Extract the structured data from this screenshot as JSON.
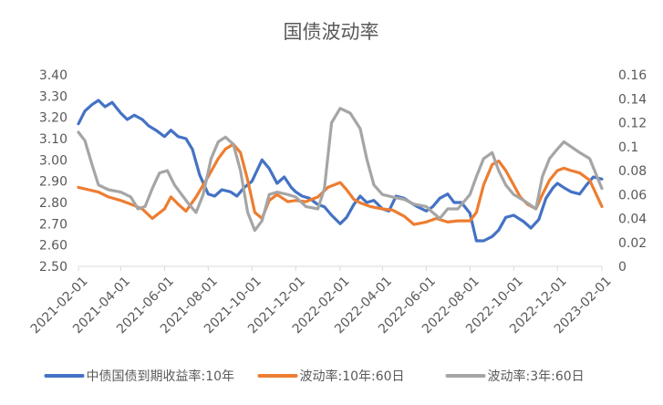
{
  "chart_data": {
    "type": "line",
    "title": "国债波动率",
    "x_start": "2021-02-01",
    "x_end": "2023-02-01",
    "x_ticks": [
      "2021-02-01",
      "2021-04-01",
      "2021-06-01",
      "2021-08-01",
      "2021-10-01",
      "2021-12-01",
      "2022-02-01",
      "2022-04-01",
      "2022-06-01",
      "2022-08-01",
      "2022-10-01",
      "2022-12-01",
      "2023-02-01"
    ],
    "y_left": {
      "min": 2.5,
      "max": 3.4,
      "ticks": [
        "2.50",
        "2.60",
        "2.70",
        "2.80",
        "2.90",
        "3.00",
        "3.10",
        "3.20",
        "3.30",
        "3.40"
      ]
    },
    "y_right": {
      "min": 0,
      "max": 0.16,
      "ticks": [
        "0",
        "0.02",
        "0.04",
        "0.06",
        "0.08",
        "0.1",
        "0.12",
        "0.14",
        "0.16"
      ]
    },
    "grid": false,
    "legend_position": "bottom",
    "series": [
      {
        "name": "中债国债到期收益率:10年",
        "axis": "left",
        "color": "#4472C4",
        "points": [
          [
            "2021-02-01",
            3.17
          ],
          [
            "2021-02-10",
            3.23
          ],
          [
            "2021-02-20",
            3.26
          ],
          [
            "2021-03-01",
            3.28
          ],
          [
            "2021-03-10",
            3.25
          ],
          [
            "2021-03-20",
            3.27
          ],
          [
            "2021-04-01",
            3.22
          ],
          [
            "2021-04-10",
            3.19
          ],
          [
            "2021-04-20",
            3.21
          ],
          [
            "2021-05-01",
            3.19
          ],
          [
            "2021-05-10",
            3.16
          ],
          [
            "2021-05-20",
            3.14
          ],
          [
            "2021-06-01",
            3.11
          ],
          [
            "2021-06-10",
            3.14
          ],
          [
            "2021-06-20",
            3.11
          ],
          [
            "2021-07-01",
            3.1
          ],
          [
            "2021-07-10",
            3.05
          ],
          [
            "2021-07-20",
            2.93
          ],
          [
            "2021-08-01",
            2.84
          ],
          [
            "2021-08-10",
            2.83
          ],
          [
            "2021-08-20",
            2.86
          ],
          [
            "2021-09-01",
            2.85
          ],
          [
            "2021-09-10",
            2.83
          ],
          [
            "2021-09-20",
            2.87
          ],
          [
            "2021-10-01",
            2.9
          ],
          [
            "2021-10-15",
            3.0
          ],
          [
            "2021-10-25",
            2.96
          ],
          [
            "2021-11-05",
            2.89
          ],
          [
            "2021-11-15",
            2.92
          ],
          [
            "2021-11-25",
            2.87
          ],
          [
            "2021-12-01",
            2.85
          ],
          [
            "2021-12-10",
            2.83
          ],
          [
            "2021-12-20",
            2.82
          ],
          [
            "2022-01-01",
            2.79
          ],
          [
            "2022-01-10",
            2.78
          ],
          [
            "2022-01-20",
            2.74
          ],
          [
            "2022-02-01",
            2.7
          ],
          [
            "2022-02-10",
            2.73
          ],
          [
            "2022-02-20",
            2.79
          ],
          [
            "2022-03-01",
            2.83
          ],
          [
            "2022-03-10",
            2.8
          ],
          [
            "2022-03-20",
            2.81
          ],
          [
            "2022-04-01",
            2.77
          ],
          [
            "2022-04-10",
            2.76
          ],
          [
            "2022-04-20",
            2.83
          ],
          [
            "2022-05-01",
            2.82
          ],
          [
            "2022-05-10",
            2.8
          ],
          [
            "2022-05-20",
            2.78
          ],
          [
            "2022-06-01",
            2.76
          ],
          [
            "2022-06-10",
            2.78
          ],
          [
            "2022-06-20",
            2.82
          ],
          [
            "2022-07-01",
            2.84
          ],
          [
            "2022-07-10",
            2.8
          ],
          [
            "2022-07-20",
            2.8
          ],
          [
            "2022-08-01",
            2.75
          ],
          [
            "2022-08-10",
            2.62
          ],
          [
            "2022-08-20",
            2.62
          ],
          [
            "2022-09-01",
            2.64
          ],
          [
            "2022-09-10",
            2.67
          ],
          [
            "2022-09-20",
            2.73
          ],
          [
            "2022-10-01",
            2.74
          ],
          [
            "2022-10-15",
            2.71
          ],
          [
            "2022-10-25",
            2.68
          ],
          [
            "2022-11-05",
            2.72
          ],
          [
            "2022-11-15",
            2.82
          ],
          [
            "2022-11-25",
            2.87
          ],
          [
            "2022-12-01",
            2.89
          ],
          [
            "2022-12-10",
            2.87
          ],
          [
            "2022-12-20",
            2.85
          ],
          [
            "2023-01-01",
            2.84
          ],
          [
            "2023-01-10",
            2.88
          ],
          [
            "2023-01-20",
            2.92
          ],
          [
            "2023-02-01",
            2.91
          ]
        ]
      },
      {
        "name": "波动率:10年:60日",
        "axis": "right",
        "color": "#ED7D31",
        "points": [
          [
            "2021-02-01",
            0.066
          ],
          [
            "2021-02-15",
            0.064
          ],
          [
            "2021-03-01",
            0.062
          ],
          [
            "2021-03-15",
            0.058
          ],
          [
            "2021-04-01",
            0.055
          ],
          [
            "2021-04-15",
            0.052
          ],
          [
            "2021-05-01",
            0.048
          ],
          [
            "2021-05-15",
            0.04
          ],
          [
            "2021-06-01",
            0.048
          ],
          [
            "2021-06-10",
            0.058
          ],
          [
            "2021-06-20",
            0.052
          ],
          [
            "2021-07-01",
            0.046
          ],
          [
            "2021-07-15",
            0.058
          ],
          [
            "2021-08-01",
            0.075
          ],
          [
            "2021-08-15",
            0.09
          ],
          [
            "2021-08-25",
            0.098
          ],
          [
            "2021-09-05",
            0.102
          ],
          [
            "2021-09-15",
            0.095
          ],
          [
            "2021-09-25",
            0.072
          ],
          [
            "2021-10-05",
            0.045
          ],
          [
            "2021-10-15",
            0.04
          ],
          [
            "2021-10-25",
            0.055
          ],
          [
            "2021-11-05",
            0.06
          ],
          [
            "2021-11-20",
            0.054
          ],
          [
            "2021-12-01",
            0.055
          ],
          [
            "2021-12-15",
            0.054
          ],
          [
            "2022-01-01",
            0.058
          ],
          [
            "2022-01-15",
            0.066
          ],
          [
            "2022-02-01",
            0.07
          ],
          [
            "2022-02-10",
            0.064
          ],
          [
            "2022-02-20",
            0.056
          ],
          [
            "2022-03-01",
            0.053
          ],
          [
            "2022-03-15",
            0.05
          ],
          [
            "2022-04-01",
            0.048
          ],
          [
            "2022-04-15",
            0.047
          ],
          [
            "2022-05-01",
            0.042
          ],
          [
            "2022-05-15",
            0.035
          ],
          [
            "2022-06-01",
            0.037
          ],
          [
            "2022-06-15",
            0.04
          ],
          [
            "2022-07-01",
            0.037
          ],
          [
            "2022-07-15",
            0.038
          ],
          [
            "2022-08-01",
            0.038
          ],
          [
            "2022-08-10",
            0.045
          ],
          [
            "2022-08-20",
            0.068
          ],
          [
            "2022-09-01",
            0.085
          ],
          [
            "2022-09-10",
            0.088
          ],
          [
            "2022-09-20",
            0.08
          ],
          [
            "2022-10-01",
            0.068
          ],
          [
            "2022-10-10",
            0.058
          ],
          [
            "2022-10-20",
            0.052
          ],
          [
            "2022-11-01",
            0.048
          ],
          [
            "2022-11-10",
            0.06
          ],
          [
            "2022-11-20",
            0.072
          ],
          [
            "2022-12-01",
            0.08
          ],
          [
            "2022-12-10",
            0.082
          ],
          [
            "2022-12-20",
            0.08
          ],
          [
            "2023-01-01",
            0.078
          ],
          [
            "2023-01-15",
            0.072
          ],
          [
            "2023-02-01",
            0.05
          ]
        ]
      },
      {
        "name": "波动率:3年:60日",
        "axis": "right",
        "color": "#A5A5A5",
        "points": [
          [
            "2021-02-01",
            0.112
          ],
          [
            "2021-02-10",
            0.105
          ],
          [
            "2021-02-20",
            0.085
          ],
          [
            "2021-03-01",
            0.068
          ],
          [
            "2021-03-15",
            0.064
          ],
          [
            "2021-04-01",
            0.062
          ],
          [
            "2021-04-15",
            0.058
          ],
          [
            "2021-04-25",
            0.048
          ],
          [
            "2021-05-05",
            0.05
          ],
          [
            "2021-05-15",
            0.065
          ],
          [
            "2021-05-25",
            0.078
          ],
          [
            "2021-06-05",
            0.08
          ],
          [
            "2021-06-15",
            0.068
          ],
          [
            "2021-06-25",
            0.06
          ],
          [
            "2021-07-05",
            0.052
          ],
          [
            "2021-07-15",
            0.045
          ],
          [
            "2021-07-25",
            0.06
          ],
          [
            "2021-08-05",
            0.09
          ],
          [
            "2021-08-15",
            0.104
          ],
          [
            "2021-08-25",
            0.108
          ],
          [
            "2021-09-05",
            0.102
          ],
          [
            "2021-09-15",
            0.08
          ],
          [
            "2021-09-25",
            0.045
          ],
          [
            "2021-10-05",
            0.03
          ],
          [
            "2021-10-15",
            0.038
          ],
          [
            "2021-10-25",
            0.06
          ],
          [
            "2021-11-05",
            0.062
          ],
          [
            "2021-11-20",
            0.06
          ],
          [
            "2021-12-01",
            0.058
          ],
          [
            "2021-12-15",
            0.05
          ],
          [
            "2022-01-01",
            0.048
          ],
          [
            "2022-01-10",
            0.065
          ],
          [
            "2022-01-20",
            0.12
          ],
          [
            "2022-02-01",
            0.132
          ],
          [
            "2022-02-15",
            0.128
          ],
          [
            "2022-03-01",
            0.115
          ],
          [
            "2022-03-10",
            0.09
          ],
          [
            "2022-03-20",
            0.068
          ],
          [
            "2022-04-01",
            0.06
          ],
          [
            "2022-04-15",
            0.058
          ],
          [
            "2022-05-01",
            0.056
          ],
          [
            "2022-05-15",
            0.052
          ],
          [
            "2022-06-01",
            0.05
          ],
          [
            "2022-06-10",
            0.045
          ],
          [
            "2022-06-20",
            0.04
          ],
          [
            "2022-07-01",
            0.048
          ],
          [
            "2022-07-15",
            0.048
          ],
          [
            "2022-08-01",
            0.06
          ],
          [
            "2022-08-10",
            0.075
          ],
          [
            "2022-08-20",
            0.09
          ],
          [
            "2022-09-01",
            0.095
          ],
          [
            "2022-09-10",
            0.08
          ],
          [
            "2022-09-20",
            0.068
          ],
          [
            "2022-10-01",
            0.06
          ],
          [
            "2022-10-15",
            0.055
          ],
          [
            "2022-11-01",
            0.048
          ],
          [
            "2022-11-10",
            0.075
          ],
          [
            "2022-11-20",
            0.09
          ],
          [
            "2022-12-01",
            0.098
          ],
          [
            "2022-12-10",
            0.104
          ],
          [
            "2022-12-20",
            0.1
          ],
          [
            "2023-01-01",
            0.095
          ],
          [
            "2023-01-15",
            0.09
          ],
          [
            "2023-02-01",
            0.065
          ]
        ]
      }
    ]
  }
}
